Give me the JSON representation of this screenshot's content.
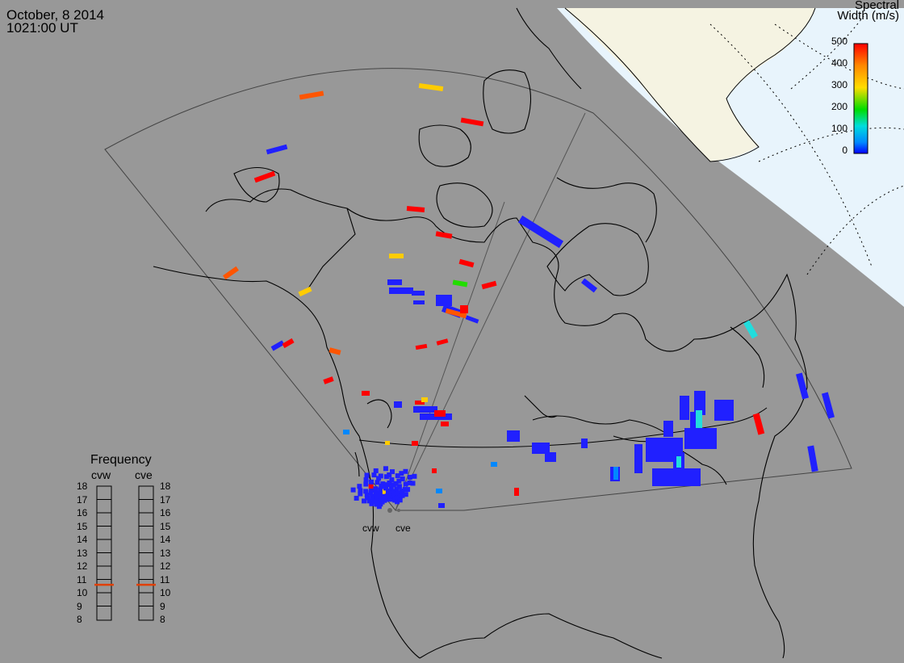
{
  "header": {
    "date": "October, 8 2014",
    "time": "1021:00 UT"
  },
  "colorbar": {
    "title_line1": "Spectral",
    "title_line2": "Width (m/s)",
    "ticks": [
      "500",
      "400",
      "300",
      "200",
      "100",
      "0"
    ],
    "stops": [
      "#ff0000",
      "#ff8800",
      "#ffdd00",
      "#00dd00",
      "#00dddd",
      "#0088ff",
      "#0000ff"
    ]
  },
  "frequency": {
    "title": "Frequency",
    "radars": [
      {
        "label": "cvw",
        "value_mhz": 10.6
      },
      {
        "label": "cve",
        "value_mhz": 10.6
      }
    ],
    "scale": [
      "18",
      "17",
      "16",
      "15",
      "14",
      "13",
      "12",
      "11",
      "10",
      "9",
      "8"
    ],
    "marker_color": "#e04000"
  },
  "radar_sites": [
    "cvw",
    "cve"
  ],
  "colors": {
    "background": "#989898",
    "polar_cap": "#f5f3e2",
    "ocean_high_lat": "#e8f4fc",
    "blue": "#2020ff",
    "red": "#ff0000",
    "orange": "#ff5500",
    "yellow": "#ffcc00",
    "green": "#22dd00",
    "cyan": "#22dddd",
    "light_blue": "#0088ff"
  }
}
